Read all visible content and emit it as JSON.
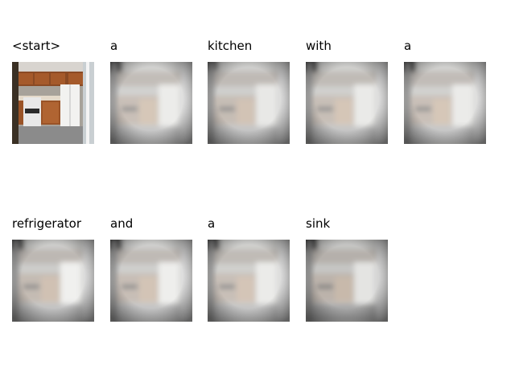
{
  "panels": [
    {
      "word": "<start>",
      "blurred": false
    },
    {
      "word": "a",
      "blurred": true
    },
    {
      "word": "kitchen",
      "blurred": true
    },
    {
      "word": "with",
      "blurred": true
    },
    {
      "word": "a",
      "blurred": true
    },
    {
      "word": "refrigerator",
      "blurred": true
    },
    {
      "word": "and",
      "blurred": true
    },
    {
      "word": "a",
      "blurred": true
    },
    {
      "word": "sink",
      "blurred": true
    }
  ]
}
